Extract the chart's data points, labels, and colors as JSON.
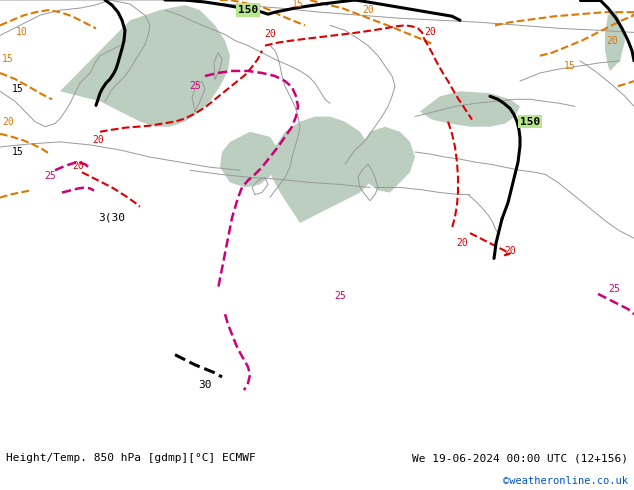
{
  "title_left": "Height/Temp. 850 hPa [gdmp][°C] ECMWF",
  "title_right": "We 19-06-2024 00:00 UTC (12+156)",
  "watermark": "©weatheronline.co.uk",
  "bg_map_color": "#b8e68c",
  "sea_color": "#c8d4c8",
  "fig_bg_color": "#ffffff",
  "black_contour_color": "#000000",
  "red_contour_color": "#dd0000",
  "magenta_contour_color": "#cc0077",
  "orange_contour_color": "#dd7700",
  "border_color": "#999999",
  "text_color": "#000000",
  "watermark_color": "#0055bb",
  "fig_width": 6.34,
  "fig_height": 4.9,
  "dpi": 100
}
